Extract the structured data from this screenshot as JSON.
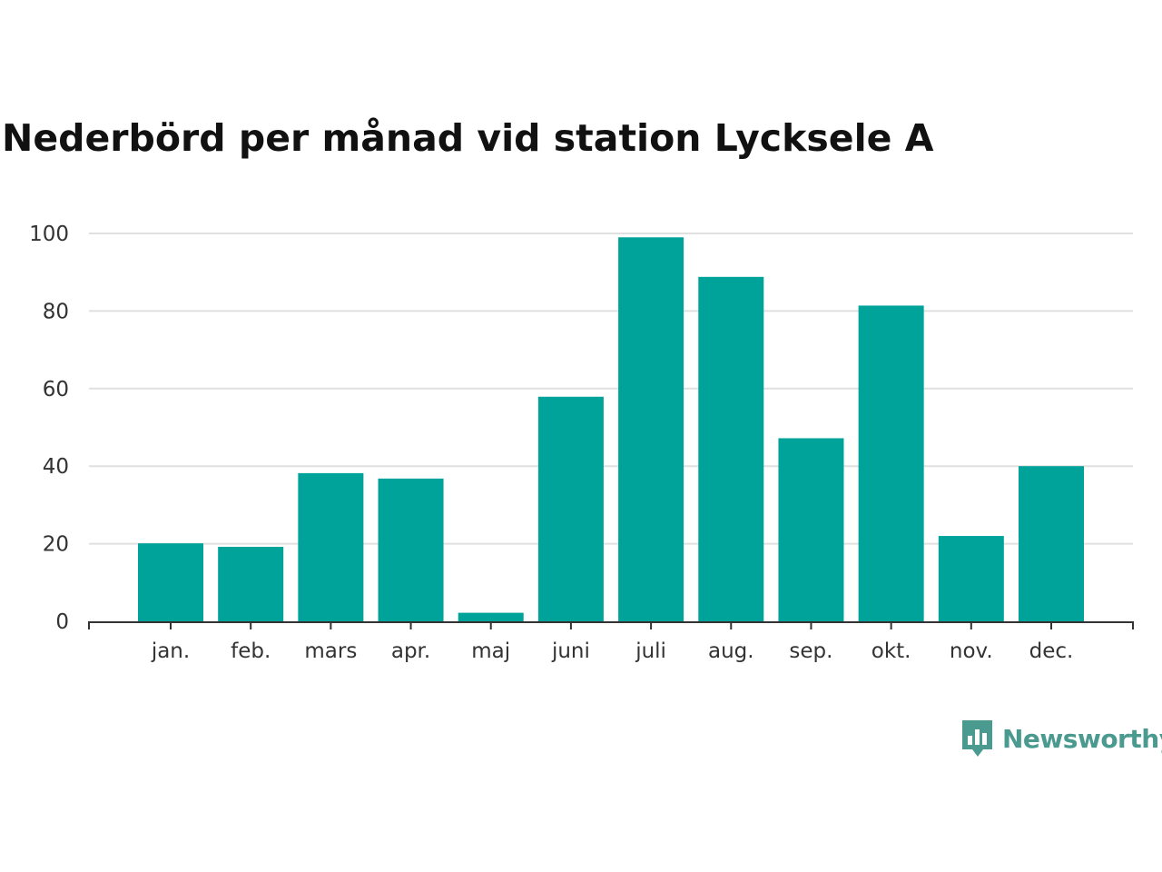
{
  "brand": {
    "name": "Newsworthy",
    "color": "#4a9a8f",
    "icon": "newsworthy-bar-chart-logo"
  },
  "chart_data": {
    "type": "bar",
    "title": "Nederbörd per månad vid station Lycksele A",
    "xlabel": "",
    "ylabel": "",
    "categories": [
      "jan.",
      "feb.",
      "mars",
      "apr.",
      "maj",
      "juni",
      "juli",
      "aug.",
      "sep.",
      "okt.",
      "nov.",
      "dec."
    ],
    "series": [
      {
        "values": [
          20.1,
          19.2,
          38.2,
          36.8,
          2.2,
          57.9,
          99.0,
          88.8,
          47.2,
          81.4,
          22.0,
          40.0
        ]
      }
    ],
    "ylim": [
      0,
      100
    ],
    "yticks": [
      0,
      20,
      40,
      60,
      80,
      100
    ],
    "grid": true,
    "bar_color": "#00a39a",
    "grid_color": "#e0e0e0",
    "axis_color": "#333333"
  }
}
